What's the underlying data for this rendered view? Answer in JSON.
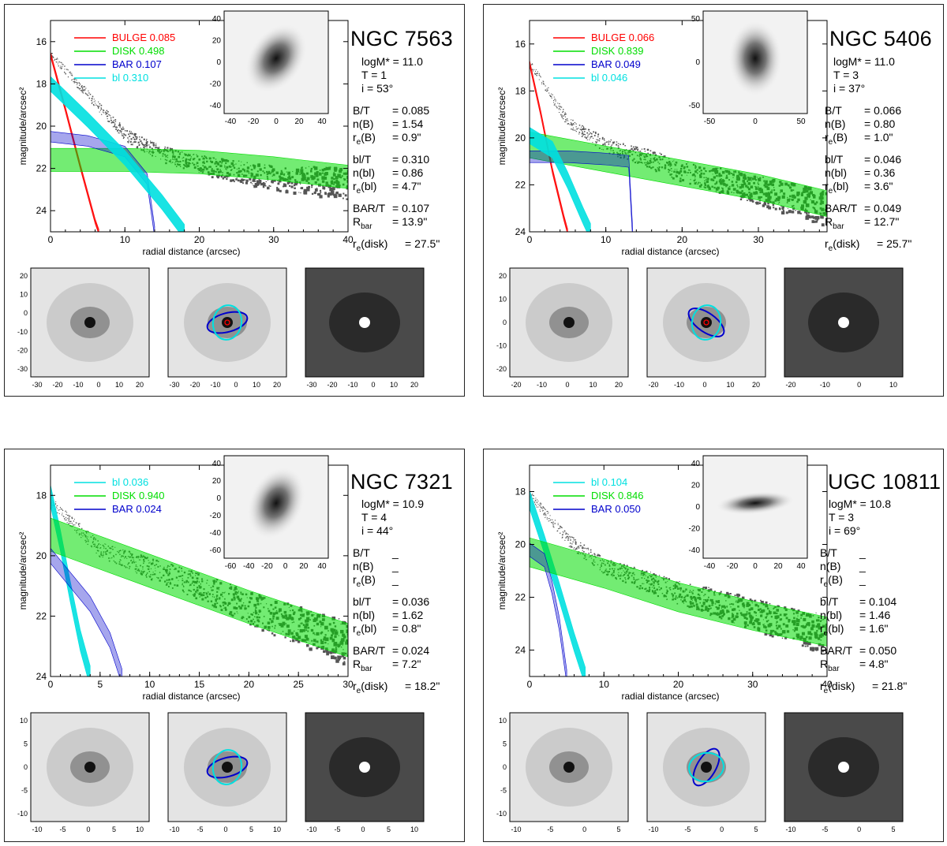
{
  "panels": [
    {
      "id": "p1",
      "galaxy": "NGC 7563",
      "info": {
        "logm_label": "logM* = 11.0",
        "t_label": "T = 1",
        "i_label": "i = 53°"
      },
      "legend": [
        {
          "label": "BULGE",
          "value": "0.085",
          "color": "#ff0000"
        },
        {
          "label": "DISK",
          "value": "0.498",
          "color": "#00dd00"
        },
        {
          "label": "BAR",
          "value": "0.107",
          "color": "#0000cc"
        },
        {
          "label": "bl",
          "value": "0.310",
          "color": "#00e0e0"
        }
      ],
      "params": {
        "bt": "= 0.085",
        "nb": "=  1.54",
        "reb": "=  0.9\"",
        "blt": "= 0.310",
        "nbl": "=  0.86",
        "rebl": "=  4.7\"",
        "bart": "= 0.107",
        "rbar": "=  13.9\"",
        "redisk": "=  27.5\""
      },
      "chart_data": {
        "type": "scatter",
        "title": "NGC 7563",
        "xlabel": "radial distance (arcsec)",
        "ylabel": "magnitude/arcsec²",
        "xlim": [
          0,
          40
        ],
        "ylim": [
          25,
          15
        ],
        "xticks": [
          0,
          10,
          20,
          30,
          40
        ],
        "yticks": [
          16,
          18,
          20,
          22,
          24
        ],
        "series": [
          {
            "name": "BULGE",
            "x": [
              0,
              2,
              4,
              6,
              6.5
            ],
            "y": [
              16.6,
              19.2,
              21.9,
              24.5,
              25
            ]
          },
          {
            "name": "DISK",
            "x": [
              0,
              10,
              20,
              30,
              40
            ],
            "y": [
              21.6,
              21.6,
              21.7,
              22.0,
              22.4
            ]
          },
          {
            "name": "BAR",
            "x": [
              0,
              5,
              10,
              13,
              14
            ],
            "y": [
              20.5,
              20.7,
              21.2,
              22.5,
              25
            ]
          },
          {
            "name": "bl",
            "x": [
              0,
              5,
              10,
              15,
              18
            ],
            "y": [
              18.0,
              19.7,
              21.5,
              23.6,
              25
            ]
          },
          {
            "name": "data",
            "x": [
              0,
              5,
              10,
              15,
              20,
              30,
              40
            ],
            "y": [
              16.6,
              18.5,
              20.4,
              21.3,
              21.8,
              22.4,
              22.7
            ]
          }
        ]
      },
      "inset": {
        "xticks": [
          "-40",
          "-20",
          "0",
          "20",
          "40"
        ],
        "yticks": [
          "40",
          "20",
          "0",
          "-20",
          "-40"
        ]
      },
      "images": {
        "xticks": [
          "-30",
          "-20",
          "-10",
          "0",
          "10",
          "20"
        ],
        "yticks": [
          "20",
          "10",
          "0",
          "-10",
          "-20",
          "-30"
        ],
        "xticks_last": [
          "-30",
          "-20",
          "-10",
          "0",
          "10",
          "20"
        ]
      }
    },
    {
      "id": "p2",
      "galaxy": "NGC 5406",
      "info": {
        "logm_label": "logM* = 11.0",
        "t_label": "T = 3",
        "i_label": "i = 37°"
      },
      "legend": [
        {
          "label": "BULGE",
          "value": "0.066",
          "color": "#ff0000"
        },
        {
          "label": "DISK",
          "value": "0.839",
          "color": "#00dd00"
        },
        {
          "label": "BAR",
          "value": "0.049",
          "color": "#0000cc"
        },
        {
          "label": "bl",
          "value": "0.046",
          "color": "#00e0e0"
        }
      ],
      "params": {
        "bt": "= 0.066",
        "nb": "=  0.80",
        "reb": "=  1.0\"",
        "blt": "= 0.046",
        "nbl": "=  0.36",
        "rebl": "=  3.6\"",
        "bart": "= 0.049",
        "rbar": "=  12.7\"",
        "redisk": "=  25.7\""
      },
      "chart_data": {
        "type": "scatter",
        "title": "NGC 5406",
        "xlabel": "radial distance (arcsec)",
        "ylabel": "magnitude/arcsec²",
        "xlim": [
          0,
          39
        ],
        "ylim": [
          24,
          15
        ],
        "xticks": [
          0,
          10,
          20,
          30
        ],
        "yticks": [
          16,
          18,
          20,
          22,
          24
        ],
        "series": [
          {
            "name": "BULGE",
            "x": [
              0,
              1.5,
              3,
              4.5,
              5
            ],
            "y": [
              16.8,
              19.0,
              21.4,
              23.4,
              24
            ]
          },
          {
            "name": "DISK",
            "x": [
              0,
              10,
              20,
              30,
              39
            ],
            "y": [
              20.3,
              20.9,
              21.5,
              22.1,
              22.8
            ]
          },
          {
            "name": "BAR",
            "x": [
              0,
              5,
              10,
              13,
              13.5
            ],
            "y": [
              20.8,
              20.8,
              20.9,
              21.0,
              24
            ]
          },
          {
            "name": "bl",
            "x": [
              0,
              3,
              5,
              7,
              8
            ],
            "y": [
              19.9,
              20.5,
              21.8,
              23.3,
              24
            ]
          },
          {
            "name": "data",
            "x": [
              0,
              5,
              10,
              15,
              20,
              30,
              39
            ],
            "y": [
              16.8,
              19.3,
              20.3,
              20.8,
              21.4,
              22.2,
              23.0
            ]
          }
        ]
      },
      "inset": {
        "xticks": [
          "-50",
          "0",
          "50"
        ],
        "yticks": [
          "50",
          "0",
          "-50"
        ]
      },
      "images": {
        "xticks": [
          "-20",
          "-10",
          "0",
          "10",
          "20"
        ],
        "yticks": [
          "20",
          "10",
          "0",
          "-10",
          "-20"
        ],
        "xticks_last": [
          "-20",
          "-10",
          "0",
          "10"
        ]
      }
    },
    {
      "id": "p3",
      "galaxy": "NGC 7321",
      "info": {
        "logm_label": "logM* = 10.9",
        "t_label": "T = 4",
        "i_label": "i = 44°"
      },
      "legend": [
        {
          "label": "bl",
          "value": "0.036",
          "color": "#00e0e0"
        },
        {
          "label": "DISK",
          "value": "0.940",
          "color": "#00dd00"
        },
        {
          "label": "BAR",
          "value": "0.024",
          "color": "#0000cc"
        }
      ],
      "params": {
        "bt": "_",
        "nb": "_",
        "reb": "_",
        "blt": "= 0.036",
        "nbl": "=  1.62",
        "rebl": "=  0.8\"",
        "bart": "= 0.024",
        "rbar": "=  7.2\"",
        "redisk": "=  18.2\""
      },
      "chart_data": {
        "type": "scatter",
        "title": "NGC 7321",
        "xlabel": "radial distance (arcsec)",
        "ylabel": "magnitude/arcsec²",
        "xlim": [
          0,
          30
        ],
        "ylim": [
          24,
          17
        ],
        "xticks": [
          0,
          5,
          10,
          15,
          20,
          25,
          30
        ],
        "yticks": [
          18,
          20,
          22,
          24
        ],
        "series": [
          {
            "name": "bl",
            "x": [
              0,
              1,
              2,
              3,
              4
            ],
            "y": [
              18.0,
              19.5,
              21.2,
              22.8,
              24
            ]
          },
          {
            "name": "DISK",
            "x": [
              0,
              10,
              20,
              30
            ],
            "y": [
              19.3,
              20.5,
              21.7,
              22.8
            ]
          },
          {
            "name": "BAR",
            "x": [
              0,
              2,
              4,
              6,
              7.2
            ],
            "y": [
              20.0,
              20.8,
              21.6,
              22.8,
              24
            ]
          },
          {
            "name": "data",
            "x": [
              0,
              5,
              10,
              15,
              20,
              25,
              30
            ],
            "y": [
              18.2,
              19.8,
              20.4,
              21.0,
              21.7,
              22.3,
              22.9
            ]
          }
        ]
      },
      "inset": {
        "xticks": [
          "-60",
          "-40",
          "-20",
          "0",
          "20",
          "40"
        ],
        "yticks": [
          "40",
          "20",
          "0",
          "-20",
          "-40",
          "-60"
        ]
      },
      "images": {
        "xticks": [
          "-10",
          "-5",
          "0",
          "5",
          "10"
        ],
        "yticks": [
          "10",
          "5",
          "0",
          "-5",
          "-10"
        ],
        "xticks_last": [
          "-10",
          "-5",
          "0",
          "5",
          "10"
        ]
      }
    },
    {
      "id": "p4",
      "galaxy": "UGC 10811",
      "info": {
        "logm_label": "logM* = 10.8",
        "t_label": "T = 3",
        "i_label": "i = 69°"
      },
      "legend": [
        {
          "label": "bl",
          "value": "0.104",
          "color": "#00e0e0"
        },
        {
          "label": "DISK",
          "value": "0.846",
          "color": "#00dd00"
        },
        {
          "label": "BAR",
          "value": "0.050",
          "color": "#0000cc"
        }
      ],
      "params": {
        "bt": "_",
        "nb": "_",
        "reb": "_",
        "blt": "= 0.104",
        "nbl": "=  1.46",
        "rebl": "=  1.6\"",
        "bart": "= 0.050",
        "rbar": "=  4.8\"",
        "redisk": "=  21.8\""
      },
      "chart_data": {
        "type": "scatter",
        "title": "UGC 10811",
        "xlabel": "radial distance (arcsec)",
        "ylabel": "magnitude/arcsec²",
        "xlim": [
          0,
          40
        ],
        "ylim": [
          25,
          17
        ],
        "xticks": [
          0,
          10,
          20,
          30,
          40
        ],
        "yticks": [
          18,
          20,
          22,
          24
        ],
        "series": [
          {
            "name": "bl",
            "x": [
              0,
              2,
              4,
              6,
              7.5
            ],
            "y": [
              18.3,
              20.0,
              21.8,
              23.7,
              25
            ]
          },
          {
            "name": "DISK",
            "x": [
              0,
              10,
              20,
              30,
              40
            ],
            "y": [
              20.3,
              21.1,
              22.0,
              22.7,
              23.3
            ]
          },
          {
            "name": "BAR",
            "x": [
              0,
              2,
              3,
              4,
              5
            ],
            "y": [
              20.2,
              20.6,
              21.6,
              23.0,
              25
            ]
          },
          {
            "name": "data",
            "x": [
              0,
              5,
              10,
              15,
              20,
              30,
              40
            ],
            "y": [
              18.1,
              19.8,
              20.8,
              21.3,
              21.8,
              22.6,
              23.4
            ]
          }
        ]
      },
      "inset": {
        "xticks": [
          "-40",
          "-20",
          "0",
          "20",
          "40"
        ],
        "yticks": [
          "40",
          "20",
          "0",
          "-20",
          "-40"
        ]
      },
      "images": {
        "xticks": [
          "-10",
          "-5",
          "0",
          "5"
        ],
        "yticks": [
          "10",
          "5",
          "0",
          "-5",
          "-10"
        ],
        "xticks_last": [
          "-10",
          "-5",
          "0",
          "5"
        ]
      }
    }
  ],
  "labels": {
    "bt": "B/T",
    "nb": "n(B)",
    "reb_main": "r",
    "reb_sub": "e",
    "reb_tail": "(B)",
    "blt": "bl/T",
    "nbl": "n(bl)",
    "rebl_main": "r",
    "rebl_sub": "e",
    "rebl_tail": "(bl)",
    "bart": "BAR/T",
    "rbar_main": "R",
    "rbar_sub": "bar",
    "redisk_main": "r",
    "redisk_sub": "e",
    "redisk_tail": "(disk)"
  }
}
